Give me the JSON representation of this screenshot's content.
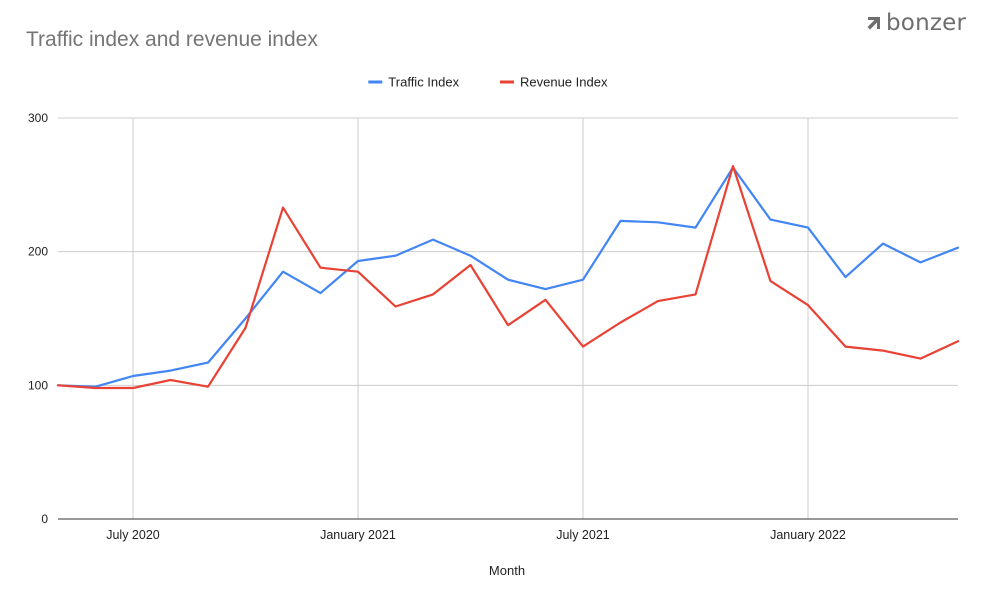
{
  "brand": {
    "logo_text": "bonzer",
    "logo_icon": "bonzer-arrow-icon"
  },
  "chart_data": {
    "type": "line",
    "title": "Traffic index and revenue index",
    "xlabel": "Month",
    "ylabel": "",
    "ylim": [
      0,
      300
    ],
    "yticks": [
      0,
      100,
      200,
      300
    ],
    "x": [
      "2020-05",
      "2020-06",
      "2020-07",
      "2020-08",
      "2020-09",
      "2020-10",
      "2020-11",
      "2020-12",
      "2021-01",
      "2021-02",
      "2021-03",
      "2021-04",
      "2021-05",
      "2021-06",
      "2021-07",
      "2021-08",
      "2021-09",
      "2021-10",
      "2021-11",
      "2021-12",
      "2022-01",
      "2022-02",
      "2022-03",
      "2022-04",
      "2022-05"
    ],
    "xticks": [
      {
        "at": "2020-07",
        "label": "July 2020"
      },
      {
        "at": "2021-01",
        "label": "January 2021"
      },
      {
        "at": "2021-07",
        "label": "July 2021"
      },
      {
        "at": "2022-01",
        "label": "January 2022"
      }
    ],
    "series": [
      {
        "name": "Traffic Index",
        "color": "#4285f4",
        "values": [
          100,
          99,
          107,
          111,
          117,
          150,
          185,
          169,
          193,
          197,
          209,
          197,
          179,
          172,
          179,
          223,
          222,
          218,
          263,
          224,
          218,
          181,
          206,
          192,
          203
        ]
      },
      {
        "name": "Revenue Index",
        "color": "#e94235",
        "values": [
          100,
          98,
          98,
          104,
          99,
          143,
          233,
          188,
          185,
          159,
          168,
          190,
          145,
          164,
          129,
          147,
          163,
          168,
          264,
          178,
          160,
          129,
          126,
          120,
          133
        ]
      }
    ],
    "legend_position": "top-center",
    "grid": true,
    "colors": {
      "grid": "#cccccc",
      "axis": "#333333",
      "text": "#222222",
      "title": "#757575"
    }
  }
}
